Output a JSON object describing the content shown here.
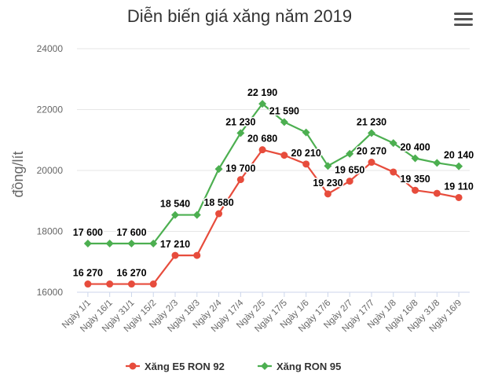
{
  "chart_data": {
    "type": "line",
    "title": "Diễn biến giá xăng năm 2019",
    "ylabel": "đồng/lít",
    "xlabel": "",
    "ylim": [
      16000,
      24000
    ],
    "yticks": [
      16000,
      18000,
      20000,
      22000,
      24000
    ],
    "categories": [
      "Ngày 1/1",
      "Ngày 16/1",
      "Ngày 31/1",
      "Ngày 15/2",
      "Ngày 2/3",
      "Ngày 18/3",
      "Ngày 2/4",
      "Ngày 17/4",
      "Ngày 2/5",
      "Ngày 17/5",
      "Ngày 1/6",
      "Ngày 17/6",
      "Ngày 2/7",
      "Ngày 17/7",
      "Ngày 1/8",
      "Ngày 16/8",
      "Ngày 31/8",
      "Ngày 16/9"
    ],
    "legend_position": "bottom",
    "grid": true,
    "series": [
      {
        "name": "Xăng E5 RON 92",
        "color": "#e74c3c",
        "marker": "circle",
        "values": [
          16270,
          16270,
          16270,
          16270,
          17210,
          17210,
          18580,
          19700,
          20680,
          20500,
          20210,
          19230,
          19650,
          20270,
          19950,
          19350,
          19250,
          19110
        ],
        "labels": [
          "16 270",
          "",
          "16 270",
          "",
          "17 210",
          "",
          "18 580",
          "19 700",
          "20 680",
          "",
          "20 210",
          "19 230",
          "19 650",
          "20 270",
          "",
          "19 350",
          "",
          "19 110"
        ]
      },
      {
        "name": "Xăng RON 95",
        "color": "#4caf50",
        "marker": "diamond",
        "values": [
          17600,
          17600,
          17600,
          17600,
          18540,
          18540,
          20050,
          21230,
          22190,
          21590,
          21250,
          20150,
          20550,
          21230,
          20900,
          20400,
          20250,
          20140
        ],
        "labels": [
          "17 600",
          "",
          "17 600",
          "",
          "18 540",
          "",
          "",
          "21 230",
          "22 190",
          "21 590",
          "",
          "",
          "",
          "21 230",
          "",
          "20 400",
          "",
          "20 140"
        ]
      }
    ]
  }
}
